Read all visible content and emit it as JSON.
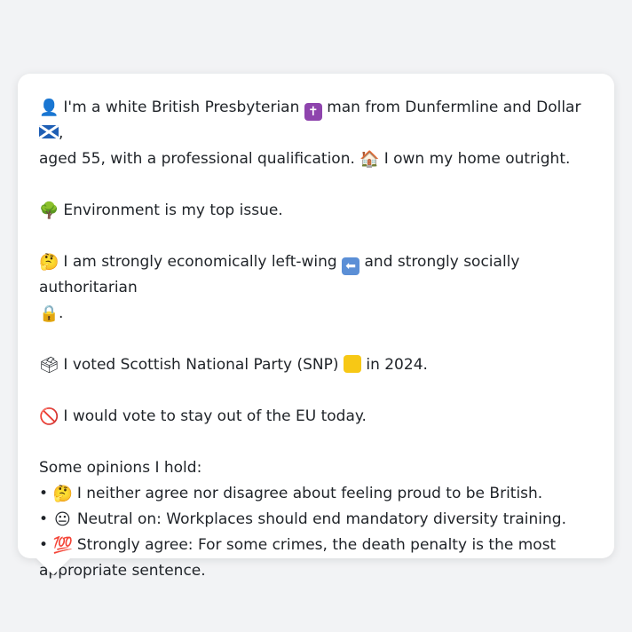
{
  "profile": {
    "p1_line1_a": "I'm a white British Presbyterian",
    "p1_line1_b": "man from Dunfermline and Dollar",
    "p1_line1_c": ",",
    "p1_line2_a": "aged 55, with a professional qualification.",
    "p1_line2_b": "I own my home outright.",
    "p2": "Environment is my top issue.",
    "p3_a": "I am strongly economically left-wing",
    "p3_b": "and strongly socially authoritarian",
    "p3_c": ".",
    "p4_a": "I voted Scottish National Party (SNP)",
    "p4_b": "in 2024.",
    "p5": "I would vote to stay out of the EU today.",
    "opinions_heading": "Some opinions I hold:",
    "opinions": [
      "I neither agree nor disagree about feeling proud to be British.",
      "Neutral on: Workplaces should end mandatory diversity training.",
      "Strongly agree: For some crimes, the death penalty is the most appropriate sentence."
    ]
  },
  "icons": {
    "person": "bust-in-silhouette-icon",
    "cross": "latin-cross-icon",
    "scotland_flag": "scotland-flag-icon",
    "house": "house-icon",
    "tree": "tree-icon",
    "thinking": "thinking-face-icon",
    "left_arrow": "left-arrow-icon",
    "lock": "lock-icon",
    "ballot": "ballot-box-icon",
    "yellow_square": "yellow-square-icon",
    "no_entry": "prohibited-icon",
    "neutral": "neutral-face-icon",
    "hundred": "hundred-points-icon"
  },
  "colors": {
    "background": "#f2f3f5",
    "card": "#ffffff",
    "text": "#1f2328",
    "snp_yellow": "#f7c815"
  }
}
